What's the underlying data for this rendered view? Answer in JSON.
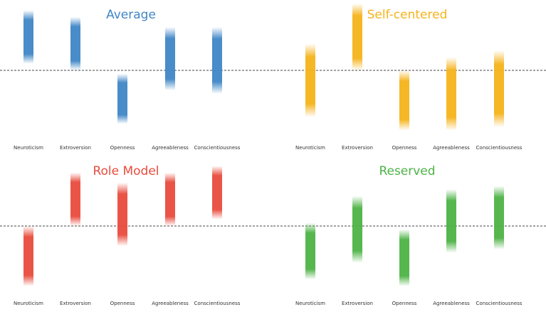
{
  "chart_data": [
    {
      "type": "bar",
      "title": "Average",
      "color": "#3f86c6",
      "categories": [
        "Neuroticism",
        "Extroversion",
        "Openness",
        "Agreeableness",
        "Conscientiousness"
      ],
      "ranges": [
        [
          0.2,
          1.8
        ],
        [
          0.0,
          1.6
        ],
        [
          -1.6,
          -0.1
        ],
        [
          -0.6,
          1.3
        ],
        [
          -0.7,
          1.3
        ]
      ],
      "ylim": [
        -2,
        2
      ],
      "reference_line": 0,
      "reference_style": "dashed"
    },
    {
      "type": "bar",
      "title": "Self-centered",
      "color": "#f5b31b",
      "categories": [
        "Neuroticism",
        "Extroversion",
        "Openness",
        "Agreeableness",
        "Conscientiousness"
      ],
      "ranges": [
        [
          -1.4,
          0.8
        ],
        [
          0.0,
          2.0
        ],
        [
          -1.8,
          0.0
        ],
        [
          -1.8,
          0.4
        ],
        [
          -1.7,
          0.6
        ]
      ],
      "ylim": [
        -2,
        2
      ],
      "reference_line": 0,
      "reference_style": "dashed"
    },
    {
      "type": "bar",
      "title": "Role Model",
      "color": "#e94b3c",
      "categories": [
        "Neuroticism",
        "Extroversion",
        "Openness",
        "Agreeableness",
        "Conscientiousness"
      ],
      "ranges": [
        [
          -1.8,
          0.0
        ],
        [
          0.0,
          1.6
        ],
        [
          -0.6,
          1.3
        ],
        [
          0.0,
          1.6
        ],
        [
          0.2,
          1.8
        ]
      ],
      "ylim": [
        -2,
        2
      ],
      "reference_line": 0,
      "reference_style": "dashed"
    },
    {
      "type": "bar",
      "title": "Reserved",
      "color": "#4db346",
      "categories": [
        "Neuroticism",
        "Extroversion",
        "Openness",
        "Agreeableness",
        "Conscientiousness"
      ],
      "ranges": [
        [
          -1.6,
          0.1
        ],
        [
          -1.1,
          0.9
        ],
        [
          -1.8,
          -0.1
        ],
        [
          -0.8,
          1.1
        ],
        [
          -0.7,
          1.2
        ]
      ],
      "ylim": [
        -2,
        2
      ],
      "reference_line": 0,
      "reference_style": "dashed"
    }
  ]
}
